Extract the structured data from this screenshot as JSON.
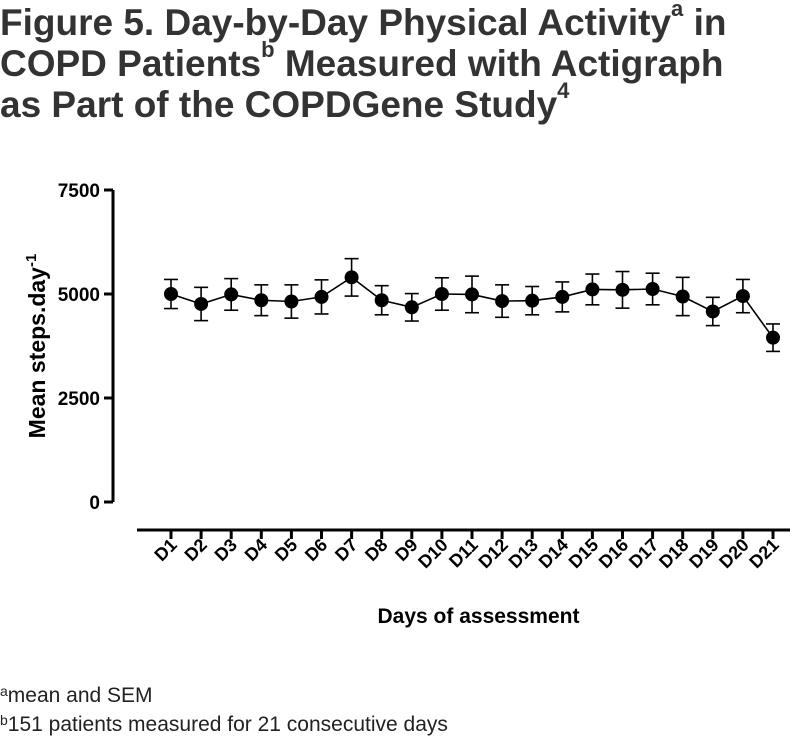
{
  "figure": {
    "title_lines": [
      {
        "text": "Figure 5. Day-by-Day Physical Activity",
        "sup": "a",
        "after": " in"
      },
      {
        "text": "COPD Patients",
        "sup": "b",
        "after": " Measured with Actigraph"
      },
      {
        "text": "as Part of the COPDGene Study",
        "sup": "4",
        "after": ""
      }
    ]
  },
  "chart_data": {
    "type": "line",
    "title": "",
    "xlabel": "Days of assessment",
    "ylabel": "Mean steps.day",
    "ylabel_sup": "-1",
    "ylim": [
      0,
      7500
    ],
    "yticks": [
      0,
      2500,
      5000,
      7500
    ],
    "yticklabels": [
      "0",
      "2500",
      "5000",
      "7500"
    ],
    "categories": [
      "D1",
      "D2",
      "D3",
      "D4",
      "D5",
      "D6",
      "D7",
      "D8",
      "D9",
      "D10",
      "D11",
      "D12",
      "D13",
      "D14",
      "D15",
      "D16",
      "D17",
      "D18",
      "D19",
      "D20",
      "D21"
    ],
    "series": [
      {
        "values": [
          5000,
          4760,
          4990,
          4850,
          4820,
          4930,
          5400,
          4850,
          4680,
          5000,
          4990,
          4830,
          4840,
          4930,
          5110,
          5100,
          5120,
          4940,
          4580,
          4950,
          3950
        ],
        "sem": [
          350,
          400,
          380,
          370,
          400,
          410,
          450,
          350,
          330,
          390,
          440,
          390,
          340,
          360,
          370,
          440,
          380,
          460,
          340,
          400,
          330
        ]
      }
    ],
    "grid": false,
    "legend": "none",
    "colors": {
      "line": "#000000",
      "marker": "#000000"
    }
  },
  "footnotes": [
    {
      "sup": "a",
      "text": "mean and SEM"
    },
    {
      "sup": "b",
      "text": "151 patients measured for 21 consecutive days"
    }
  ]
}
